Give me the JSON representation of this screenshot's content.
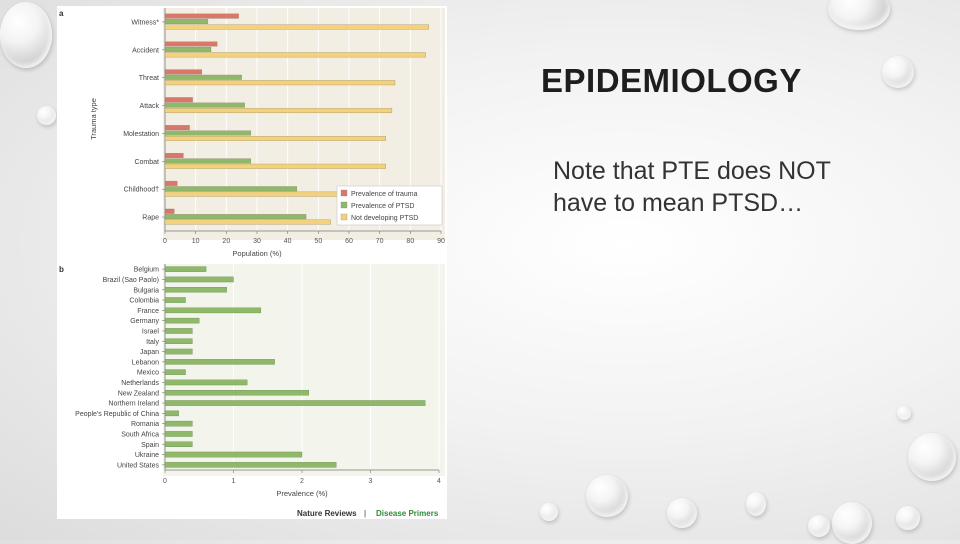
{
  "slide": {
    "title": "EPIDEMIOLOGY",
    "note_line1": "Note that PTE does NOT",
    "note_line2": "have to mean PTSD…"
  },
  "colors": {
    "trauma": "#d9776a",
    "ptsd": "#8fb86b",
    "not_ptsd": "#f3d27e"
  },
  "chart_data": [
    {
      "type": "bar",
      "orientation": "horizontal",
      "panel_label": "a",
      "xlabel": "Population (%)",
      "ylabel": "Trauma type",
      "xlim": [
        0,
        90
      ],
      "xticks": [
        0,
        10,
        20,
        30,
        40,
        50,
        60,
        70,
        80,
        90
      ],
      "categories": [
        "Witness*",
        "Accident",
        "Threat",
        "Attack",
        "Molestation",
        "Combat",
        "Childhood†",
        "Rape"
      ],
      "series": [
        {
          "name": "Prevalence of trauma",
          "values": [
            24,
            17,
            12,
            9,
            8,
            6,
            4,
            3
          ]
        },
        {
          "name": "Prevalence of PTSD",
          "values": [
            14,
            15,
            25,
            26,
            28,
            28,
            43,
            46
          ]
        },
        {
          "name": "Not developing PTSD",
          "values": [
            86,
            85,
            75,
            74,
            72,
            72,
            57,
            54
          ]
        }
      ],
      "legend_position": "bottom-right",
      "grid": true
    },
    {
      "type": "bar",
      "orientation": "horizontal",
      "panel_label": "b",
      "xlabel": "Prevalence (%)",
      "xlim": [
        0,
        4
      ],
      "xticks": [
        0,
        1,
        2,
        3,
        4
      ],
      "categories": [
        "Belgium",
        "Brazil (Sao Paolo)",
        "Bulgaria",
        "Colombia",
        "France",
        "Germany",
        "Israel",
        "Italy",
        "Japan",
        "Lebanon",
        "Mexico",
        "Netherlands",
        "New Zealand",
        "Northern Ireland",
        "People's Republic of China",
        "Romania",
        "South Africa",
        "Spain",
        "Ukraine",
        "United States"
      ],
      "series": [
        {
          "name": "Prevalence of PTSD",
          "values": [
            0.6,
            1.0,
            0.9,
            0.3,
            1.4,
            0.5,
            0.4,
            0.4,
            0.4,
            1.6,
            0.3,
            1.2,
            2.1,
            3.8,
            0.2,
            0.4,
            0.4,
            0.4,
            2.0,
            2.5
          ]
        }
      ],
      "grid": true
    }
  ],
  "credit": {
    "left": "Nature Reviews",
    "sep": " | ",
    "right": "Disease Primers"
  }
}
